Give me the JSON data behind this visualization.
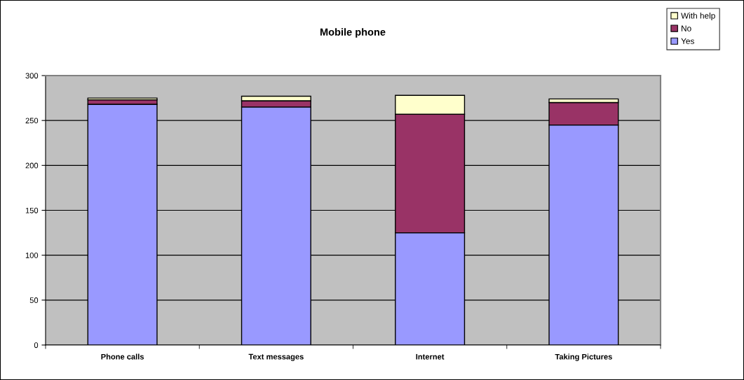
{
  "chart_data": {
    "type": "bar",
    "title": "Mobile phone",
    "categories": [
      "Phone calls",
      "Text messages",
      "Internet",
      "Taking Pictures"
    ],
    "stacked": true,
    "series": [
      {
        "name": "Yes",
        "color": "#9999ff",
        "values": [
          268,
          265,
          125,
          245
        ]
      },
      {
        "name": "No",
        "color": "#993366",
        "values": [
          5,
          7,
          132,
          25
        ]
      },
      {
        "name": "With help",
        "color": "#ffffcc",
        "values": [
          2,
          5,
          21,
          4
        ]
      }
    ],
    "ylim": [
      0,
      300
    ],
    "yticks": [
      0,
      50,
      100,
      150,
      200,
      250,
      300
    ],
    "grid": "y",
    "legend": "top right"
  }
}
